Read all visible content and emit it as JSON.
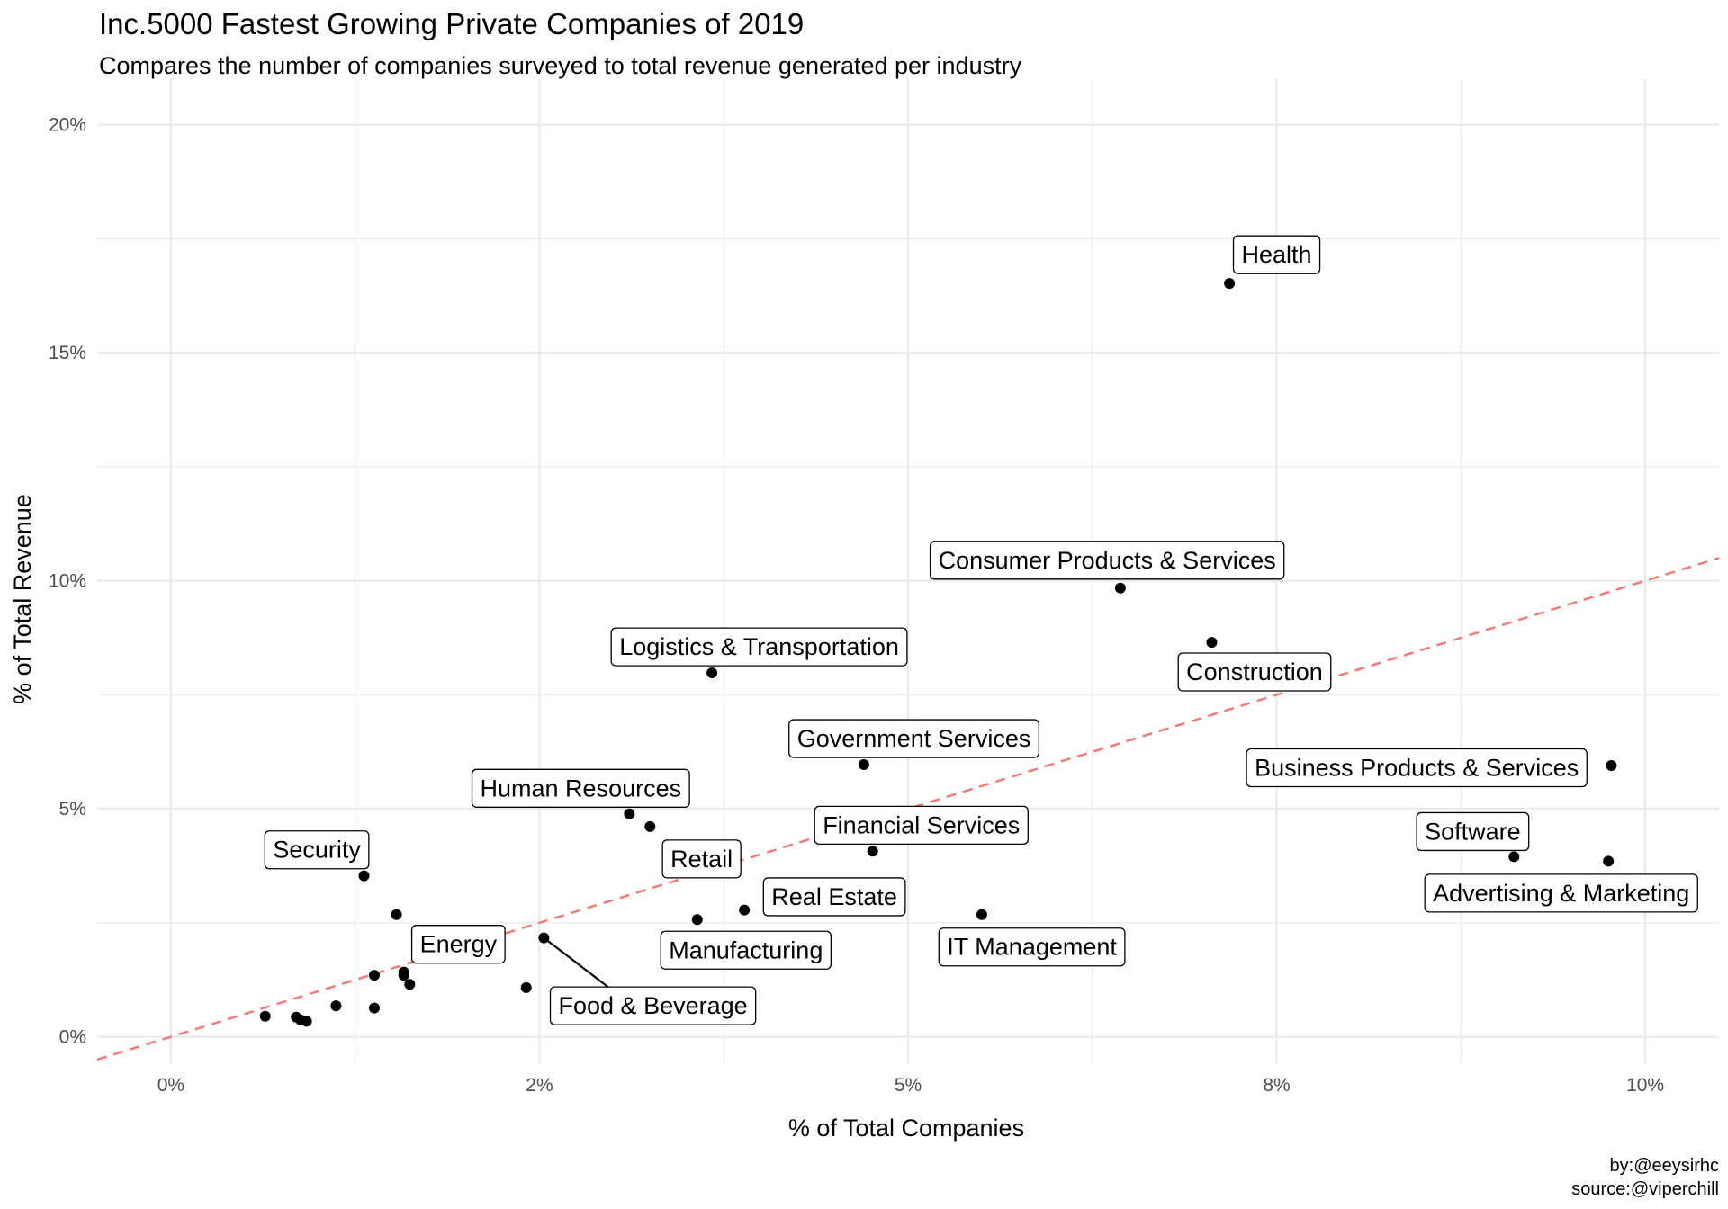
{
  "chart_data": {
    "type": "scatter",
    "title": "Inc.5000 Fastest Growing Private Companies of 2019",
    "subtitle": "Compares the number of companies surveyed to total revenue generated per industry",
    "xlabel": "% of Total Companies",
    "ylabel": "% of Total Revenue",
    "xlim": [
      -0.5,
      10.5
    ],
    "ylim": [
      -0.6,
      21
    ],
    "x_ticks": [
      0,
      2.5,
      5,
      7.5,
      10
    ],
    "x_tick_labels": [
      "0%",
      "2%",
      "5%",
      "8%",
      "10%"
    ],
    "y_ticks": [
      0,
      5,
      10,
      15,
      20
    ],
    "y_tick_labels": [
      "0%",
      "5%",
      "10%",
      "15%",
      "20%"
    ],
    "grid": true,
    "point_color": "#000000",
    "reference_line": {
      "slope": 1.0,
      "intercept": 0,
      "color": "#F8766D",
      "style": "dashed"
    },
    "points": [
      {
        "name": "Health",
        "x": 7.18,
        "y": 16.52,
        "label": true,
        "lx": 7.5,
        "ly": 17.15
      },
      {
        "name": "Consumer Products & Services",
        "x": 6.44,
        "y": 9.84,
        "label": true,
        "lx": 6.35,
        "ly": 10.45
      },
      {
        "name": "Construction",
        "x": 7.06,
        "y": 8.65,
        "label": true,
        "lx": 7.35,
        "ly": 8.0
      },
      {
        "name": "Logistics & Transportation",
        "x": 3.67,
        "y": 7.98,
        "label": true,
        "lx": 3.99,
        "ly": 8.55
      },
      {
        "name": "Government Services",
        "x": 4.7,
        "y": 5.97,
        "label": true,
        "lx": 5.04,
        "ly": 6.54
      },
      {
        "name": "Business Products & Services",
        "x": 9.77,
        "y": 5.95,
        "label": true,
        "lx": 8.45,
        "ly": 5.9
      },
      {
        "name": "Human Resources",
        "x": 3.11,
        "y": 4.89,
        "label": true,
        "lx": 2.78,
        "ly": 5.45
      },
      {
        "name": "Retail",
        "x": 3.25,
        "y": 4.61,
        "label": true,
        "lx": 3.6,
        "ly": 3.9
      },
      {
        "name": "Financial Services",
        "x": 4.76,
        "y": 4.07,
        "label": true,
        "lx": 5.09,
        "ly": 4.64
      },
      {
        "name": "Software",
        "x": 9.11,
        "y": 3.95,
        "label": true,
        "lx": 8.83,
        "ly": 4.5
      },
      {
        "name": "Advertising & Marketing",
        "x": 9.75,
        "y": 3.85,
        "label": true,
        "lx": 9.43,
        "ly": 3.15
      },
      {
        "name": "Security",
        "x": 1.31,
        "y": 3.53,
        "label": true,
        "lx": 0.99,
        "ly": 4.1
      },
      {
        "name": "Real Estate",
        "x": 3.89,
        "y": 2.78,
        "label": true,
        "lx": 4.5,
        "ly": 3.07
      },
      {
        "name": "Manufacturing",
        "x": 3.57,
        "y": 2.57,
        "label": true,
        "lx": 3.9,
        "ly": 1.9
      },
      {
        "name": "IT Management",
        "x": 5.5,
        "y": 2.68,
        "label": true,
        "lx": 5.84,
        "ly": 1.97
      },
      {
        "name": "Energy",
        "x": 1.58,
        "y": 1.35,
        "label": true,
        "lx": 1.95,
        "ly": 2.03
      },
      {
        "name": "Food & Beverage",
        "x": 2.53,
        "y": 2.17,
        "label": true,
        "lx": 3.27,
        "ly": 0.68,
        "segment": true
      },
      {
        "name": "",
        "x": 1.53,
        "y": 2.68,
        "label": false
      },
      {
        "name": "",
        "x": 1.58,
        "y": 1.42,
        "label": false
      },
      {
        "name": "",
        "x": 1.38,
        "y": 1.35,
        "label": false
      },
      {
        "name": "",
        "x": 1.62,
        "y": 1.15,
        "label": false
      },
      {
        "name": "",
        "x": 2.41,
        "y": 1.08,
        "label": false
      },
      {
        "name": "",
        "x": 1.12,
        "y": 0.68,
        "label": false
      },
      {
        "name": "",
        "x": 1.38,
        "y": 0.63,
        "label": false
      },
      {
        "name": "",
        "x": 0.64,
        "y": 0.45,
        "label": false
      },
      {
        "name": "",
        "x": 0.85,
        "y": 0.43,
        "label": false
      },
      {
        "name": "",
        "x": 0.88,
        "y": 0.37,
        "label": false
      },
      {
        "name": "",
        "x": 0.92,
        "y": 0.34,
        "label": false
      }
    ],
    "caption": [
      "by:@eeysirhc",
      "source:@viperchill"
    ]
  }
}
